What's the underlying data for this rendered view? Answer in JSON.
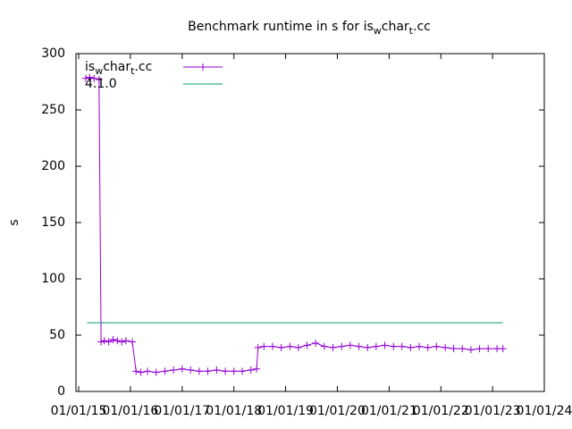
{
  "chart_data": {
    "type": "line",
    "title": "Benchmark runtime in s for is_wchar_t.cc",
    "ylabel": "s",
    "xlim": [
      "2014-12-13",
      "2024-01-01"
    ],
    "xticks": [
      {
        "value": "2015-01-01",
        "label": "01/01/15"
      },
      {
        "value": "2016-01-01",
        "label": "01/01/16"
      },
      {
        "value": "2017-01-01",
        "label": "01/01/17"
      },
      {
        "value": "2018-01-01",
        "label": "01/01/18"
      },
      {
        "value": "2019-01-01",
        "label": "01/01/19"
      },
      {
        "value": "2020-01-01",
        "label": "01/01/20"
      },
      {
        "value": "2021-01-01",
        "label": "01/01/21"
      },
      {
        "value": "2022-01-01",
        "label": "01/01/22"
      },
      {
        "value": "2023-01-01",
        "label": "01/01/23"
      },
      {
        "value": "2024-01-01",
        "label": "01/01/24"
      }
    ],
    "ylim": [
      0,
      300
    ],
    "yticks": [
      0,
      50,
      100,
      150,
      200,
      250,
      300
    ],
    "grid": false,
    "legend": "top-left",
    "series": [
      {
        "name": "is_wchar_t.cc",
        "color": "#9400d3",
        "marker": "plus",
        "x": [
          "2015-02-20",
          "2015-03-20",
          "2015-04-20",
          "2015-05-25",
          "2015-06-08",
          "2015-07-01",
          "2015-08-01",
          "2015-09-01",
          "2015-10-01",
          "2015-11-01",
          "2015-12-01",
          "2016-01-15",
          "2016-02-10",
          "2016-03-15",
          "2016-05-01",
          "2016-07-01",
          "2016-09-01",
          "2016-11-01",
          "2017-01-01",
          "2017-03-01",
          "2017-05-01",
          "2017-07-01",
          "2017-09-01",
          "2017-11-01",
          "2018-01-01",
          "2018-03-01",
          "2018-05-01",
          "2018-06-10",
          "2018-06-20",
          "2018-08-01",
          "2018-10-01",
          "2018-12-01",
          "2019-02-01",
          "2019-04-01",
          "2019-06-01",
          "2019-08-01",
          "2019-10-01",
          "2019-12-01",
          "2020-02-01",
          "2020-04-01",
          "2020-06-01",
          "2020-08-01",
          "2020-10-01",
          "2020-12-01",
          "2021-02-01",
          "2021-04-01",
          "2021-06-01",
          "2021-08-01",
          "2021-10-01",
          "2021-12-01",
          "2022-02-01",
          "2022-04-01",
          "2022-06-01",
          "2022-08-01",
          "2022-10-01",
          "2022-12-01",
          "2023-02-01",
          "2023-03-15"
        ],
        "values": [
          278,
          279,
          278,
          277,
          44,
          45,
          44,
          46,
          45,
          44,
          45,
          44,
          18,
          17,
          18,
          17,
          18,
          19,
          20,
          19,
          18,
          18,
          19,
          18,
          18,
          18,
          19,
          20,
          39,
          40,
          40,
          39,
          40,
          39,
          41,
          43,
          40,
          39,
          40,
          41,
          40,
          39,
          40,
          41,
          40,
          40,
          39,
          40,
          39,
          40,
          39,
          38,
          38,
          37,
          38,
          38,
          38,
          38
        ]
      },
      {
        "name": "4.1.0",
        "color": "#009e73",
        "marker": "none",
        "x": [
          "2015-03-01",
          "2023-03-15"
        ],
        "values": [
          61,
          61
        ]
      }
    ]
  }
}
